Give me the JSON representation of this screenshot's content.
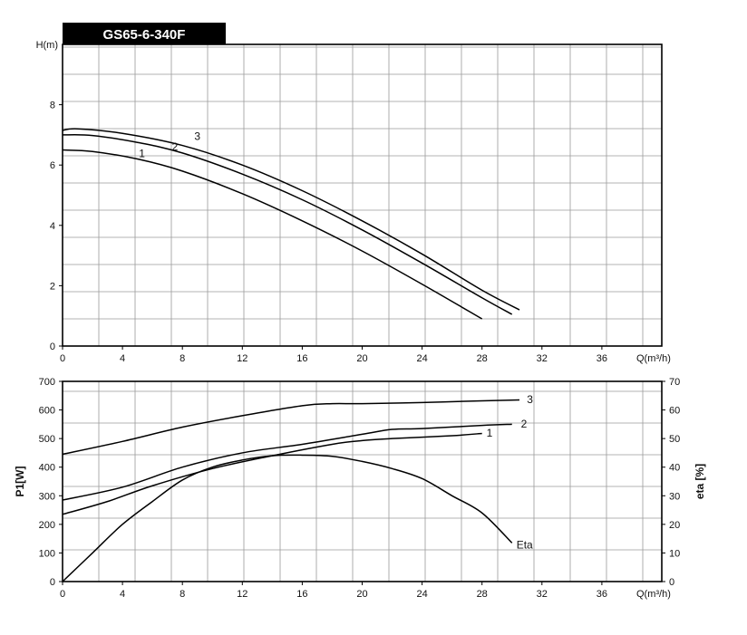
{
  "title": "GS65-6-340F",
  "chart_data": [
    {
      "type": "line",
      "ylabel": "H(m)",
      "xlabel": "Q(m³/h)",
      "xlim": [
        0,
        40
      ],
      "ylim": [
        0,
        10
      ],
      "x_ticks": [
        0,
        4,
        8,
        12,
        16,
        20,
        24,
        28,
        32,
        36
      ],
      "y_ticks": [
        0,
        2,
        4,
        6,
        8
      ],
      "grid": true,
      "series": [
        {
          "name": "1",
          "points": [
            [
              0,
              6.5
            ],
            [
              2,
              6.45
            ],
            [
              5,
              6.2
            ],
            [
              8,
              5.8
            ],
            [
              12,
              5.05
            ],
            [
              16,
              4.15
            ],
            [
              20,
              3.15
            ],
            [
              24,
              2.05
            ],
            [
              28,
              0.9
            ]
          ]
        },
        {
          "name": "2",
          "points": [
            [
              0,
              7.0
            ],
            [
              2,
              6.98
            ],
            [
              5,
              6.75
            ],
            [
              8,
              6.4
            ],
            [
              12,
              5.7
            ],
            [
              16,
              4.85
            ],
            [
              20,
              3.85
            ],
            [
              24,
              2.75
            ],
            [
              28,
              1.6
            ],
            [
              30,
              1.05
            ]
          ]
        },
        {
          "name": "3",
          "points": [
            [
              0,
              7.15
            ],
            [
              1,
              7.2
            ],
            [
              4,
              7.05
            ],
            [
              8,
              6.65
            ],
            [
              12,
              6.0
            ],
            [
              16,
              5.15
            ],
            [
              20,
              4.15
            ],
            [
              24,
              3.05
            ],
            [
              28,
              1.85
            ],
            [
              30.5,
              1.2
            ]
          ]
        }
      ],
      "annotations": [
        {
          "text": "1",
          "x": 5.1,
          "y": 6.38
        },
        {
          "text": "2",
          "x": 7.3,
          "y": 6.6
        },
        {
          "text": "3",
          "x": 8.8,
          "y": 6.95
        }
      ]
    },
    {
      "type": "line",
      "ylabel": "P1[W]",
      "y2label": "eta [%]",
      "xlabel": "Q(m³/h)",
      "xlim": [
        0,
        40
      ],
      "ylim": [
        0,
        700
      ],
      "y2lim": [
        0,
        70
      ],
      "x_ticks": [
        0,
        4,
        8,
        12,
        16,
        20,
        24,
        28,
        32,
        36
      ],
      "y_ticks": [
        0,
        100,
        200,
        300,
        400,
        500,
        600,
        700
      ],
      "y2_ticks": [
        0,
        10,
        20,
        30,
        40,
        50,
        60,
        70
      ],
      "grid": true,
      "series": [
        {
          "name": "1",
          "axis": "left",
          "points": [
            [
              0,
              235
            ],
            [
              3,
              280
            ],
            [
              6,
              335
            ],
            [
              10,
              395
            ],
            [
              14,
              440
            ],
            [
              18,
              480
            ],
            [
              20,
              493
            ],
            [
              22,
              500
            ],
            [
              26,
              510
            ],
            [
              28,
              518
            ]
          ]
        },
        {
          "name": "2",
          "axis": "left",
          "points": [
            [
              0,
              285
            ],
            [
              4,
              330
            ],
            [
              8,
              400
            ],
            [
              12,
              450
            ],
            [
              16,
              480
            ],
            [
              20,
              515
            ],
            [
              22,
              532
            ],
            [
              24,
              535
            ],
            [
              28,
              546
            ],
            [
              30,
              550
            ]
          ]
        },
        {
          "name": "3",
          "axis": "left",
          "points": [
            [
              0,
              445
            ],
            [
              4,
              490
            ],
            [
              8,
              540
            ],
            [
              12,
              580
            ],
            [
              16,
              615
            ],
            [
              18,
              622
            ],
            [
              20,
              622
            ],
            [
              24,
              626
            ],
            [
              28,
              632
            ],
            [
              30.5,
              635
            ]
          ]
        },
        {
          "name": "Eta",
          "axis": "right",
          "points": [
            [
              0,
              0
            ],
            [
              2,
              10
            ],
            [
              4,
              20
            ],
            [
              6,
              28
            ],
            [
              8,
              35.5
            ],
            [
              10,
              40
            ],
            [
              12,
              42.5
            ],
            [
              14,
              44
            ],
            [
              16,
              44.2
            ],
            [
              18,
              43.8
            ],
            [
              20,
              42
            ],
            [
              22,
              39.5
            ],
            [
              24,
              36
            ],
            [
              26,
              30
            ],
            [
              28,
              24
            ],
            [
              30,
              13.5
            ]
          ]
        }
      ],
      "annotations": [
        {
          "text": "1",
          "x": 28.3,
          "y": 519
        },
        {
          "text": "2",
          "x": 30.6,
          "y": 551
        },
        {
          "text": "3",
          "x": 31.0,
          "y": 636
        },
        {
          "text": "Eta",
          "x": 30.3,
          "y": 128
        }
      ]
    }
  ]
}
